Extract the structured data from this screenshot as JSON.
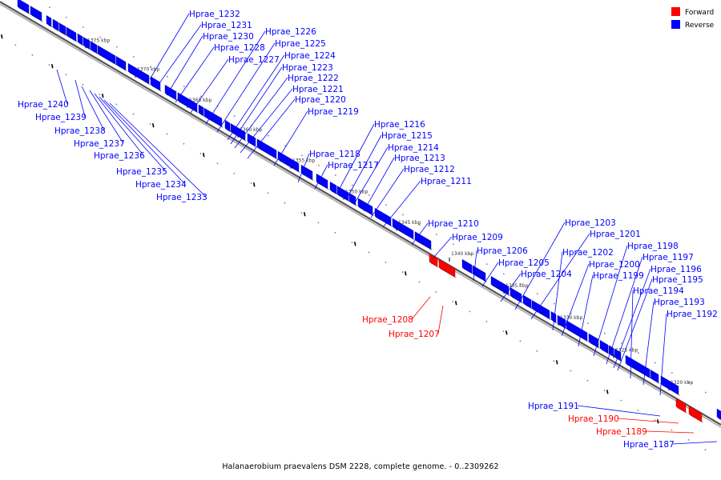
{
  "legend": {
    "forward_label": "Forward",
    "reverse_label": "Reverse",
    "forward_color": "#ff0000",
    "reverse_color": "#0000ff"
  },
  "caption": "Halanaerobium praevalens DSM 2228, complete genome. - 0..2309262",
  "scale_labels": [
    "1375 kbp",
    "1370 kbp",
    "1365 kbp",
    "1360 kbp",
    "1355 kbp",
    "1350 kbp",
    "1345 kbp",
    "1340 kbp",
    "1335 kbp",
    "1330 kbp",
    "1325 kbp",
    "1320 kbp"
  ],
  "genes": [
    {
      "name": "Hprae_1232",
      "strand": "reverse"
    },
    {
      "name": "Hprae_1231",
      "strand": "reverse"
    },
    {
      "name": "Hprae_1230",
      "strand": "reverse"
    },
    {
      "name": "Hprae_1228",
      "strand": "reverse"
    },
    {
      "name": "Hprae_1227",
      "strand": "reverse"
    },
    {
      "name": "Hprae_1226",
      "strand": "reverse"
    },
    {
      "name": "Hprae_1225",
      "strand": "reverse"
    },
    {
      "name": "Hprae_1224",
      "strand": "reverse"
    },
    {
      "name": "Hprae_1223",
      "strand": "reverse"
    },
    {
      "name": "Hprae_1222",
      "strand": "reverse"
    },
    {
      "name": "Hprae_1221",
      "strand": "reverse"
    },
    {
      "name": "Hprae_1220",
      "strand": "reverse"
    },
    {
      "name": "Hprae_1219",
      "strand": "reverse"
    },
    {
      "name": "Hprae_1240",
      "strand": "reverse"
    },
    {
      "name": "Hprae_1239",
      "strand": "reverse"
    },
    {
      "name": "Hprae_1238",
      "strand": "reverse"
    },
    {
      "name": "Hprae_1237",
      "strand": "reverse"
    },
    {
      "name": "Hprae_1236",
      "strand": "reverse"
    },
    {
      "name": "Hprae_1235",
      "strand": "reverse"
    },
    {
      "name": "Hprae_1234",
      "strand": "reverse"
    },
    {
      "name": "Hprae_1233",
      "strand": "reverse"
    },
    {
      "name": "Hprae_1216",
      "strand": "reverse"
    },
    {
      "name": "Hprae_1215",
      "strand": "reverse"
    },
    {
      "name": "Hprae_1214",
      "strand": "reverse"
    },
    {
      "name": "Hprae_1213",
      "strand": "reverse"
    },
    {
      "name": "Hprae_1212",
      "strand": "reverse"
    },
    {
      "name": "Hprae_1211",
      "strand": "reverse"
    },
    {
      "name": "Hprae_1218",
      "strand": "reverse"
    },
    {
      "name": "Hprae_1217",
      "strand": "reverse"
    },
    {
      "name": "Hprae_1210",
      "strand": "reverse"
    },
    {
      "name": "Hprae_1209",
      "strand": "reverse"
    },
    {
      "name": "Hprae_1206",
      "strand": "reverse"
    },
    {
      "name": "Hprae_1205",
      "strand": "reverse"
    },
    {
      "name": "Hprae_1204",
      "strand": "reverse"
    },
    {
      "name": "Hprae_1203",
      "strand": "reverse"
    },
    {
      "name": "Hprae_1201",
      "strand": "reverse"
    },
    {
      "name": "Hprae_1202",
      "strand": "reverse"
    },
    {
      "name": "Hprae_1200",
      "strand": "reverse"
    },
    {
      "name": "Hprae_1199",
      "strand": "reverse"
    },
    {
      "name": "Hprae_1198",
      "strand": "reverse"
    },
    {
      "name": "Hprae_1197",
      "strand": "reverse"
    },
    {
      "name": "Hprae_1196",
      "strand": "reverse"
    },
    {
      "name": "Hprae_1195",
      "strand": "reverse"
    },
    {
      "name": "Hprae_1194",
      "strand": "reverse"
    },
    {
      "name": "Hprae_1193",
      "strand": "reverse"
    },
    {
      "name": "Hprae_1192",
      "strand": "reverse"
    },
    {
      "name": "Hprae_1208",
      "strand": "forward"
    },
    {
      "name": "Hprae_1207",
      "strand": "forward"
    },
    {
      "name": "Hprae_1191",
      "strand": "reverse"
    },
    {
      "name": "Hprae_1190",
      "strand": "forward"
    },
    {
      "name": "Hprae_1189",
      "strand": "forward"
    },
    {
      "name": "Hprae_1187",
      "strand": "reverse"
    }
  ]
}
